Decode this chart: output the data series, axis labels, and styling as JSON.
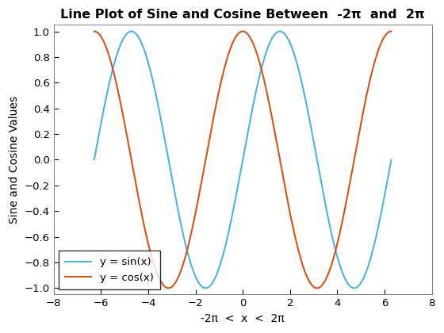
{
  "title": "Line Plot of Sine and Cosine Between  -2π  and  2π",
  "xlabel": "-2π  <  x  <  2π",
  "ylabel": "Sine and Cosine Values",
  "xlim": [
    -8,
    8
  ],
  "ylim": [
    -1.05,
    1.05
  ],
  "xticks": [
    -8,
    -6,
    -4,
    -2,
    0,
    2,
    4,
    6,
    8
  ],
  "yticks": [
    -1.0,
    -0.8,
    -0.6,
    -0.4,
    -0.2,
    0.0,
    0.2,
    0.4,
    0.6,
    0.8,
    1.0
  ],
  "sin_color": "#4db3e6",
  "cos_color": "#d95319",
  "sin_label": "y = sin(x)",
  "cos_label": "y = cos(x)",
  "line_width": 1.5,
  "background_color": "#ffffff",
  "title_fontsize": 11.5,
  "label_fontsize": 10,
  "tick_fontsize": 9.5,
  "legend_fontsize": 9.5,
  "legend_loc": "lower left",
  "grid": false
}
